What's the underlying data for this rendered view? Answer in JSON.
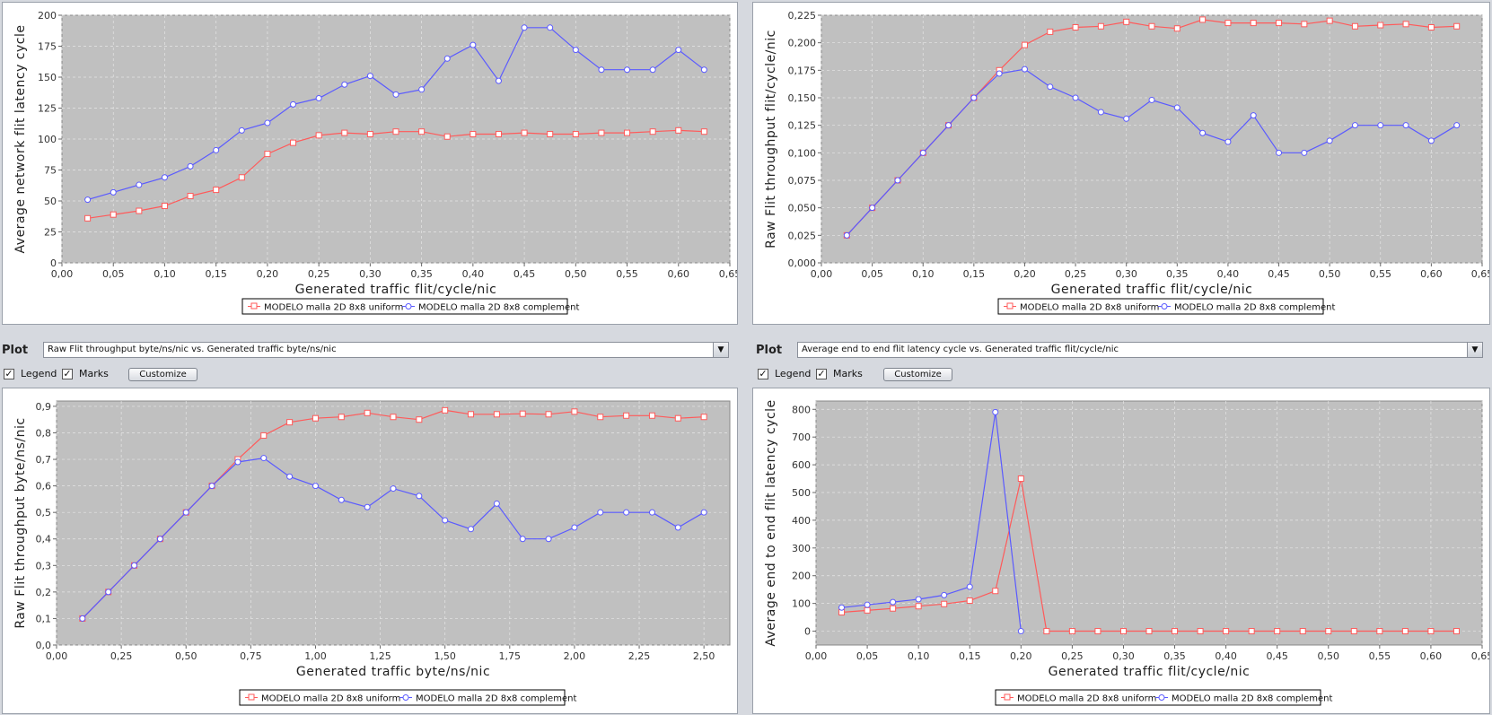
{
  "colors": {
    "series_uniform": "#ff5a5a",
    "series_complement": "#5a5aff",
    "plot_bg": "#c0c0c0",
    "grid": "#e6e6e6"
  },
  "controls": {
    "plot_label": "Plot",
    "legend_label": "Legend",
    "marks_label": "Marks",
    "customize_label": "Customize",
    "legend_checked": true,
    "marks_checked": true,
    "check_glyph": "✓",
    "dropdown_arrow_icon": "triangle-down-icon",
    "plot3_selected": "Raw Flit throughput byte/ns/nic vs. Generated traffic byte/ns/nic",
    "plot4_selected": "Average end to end flit latency cycle vs. Generated traffic flit/cycle/nic"
  },
  "chart_data": [
    {
      "type": "line",
      "title": "",
      "xlabel": "Generated traffic flit/cycle/nic",
      "ylabel": "Average network flit latency cycle",
      "xlim": [
        0,
        0.65
      ],
      "ylim": [
        0,
        200
      ],
      "xticks": [
        "0,00",
        "0,05",
        "0,10",
        "0,15",
        "0,20",
        "0,25",
        "0,30",
        "0,35",
        "0,40",
        "0,45",
        "0,50",
        "0,55",
        "0,60",
        "0,65"
      ],
      "yticks": [
        "0",
        "25",
        "50",
        "75",
        "100",
        "125",
        "150",
        "175",
        "200"
      ],
      "grid": true,
      "legend": "bottom-center",
      "series": [
        {
          "name": "MODELO  malla 2D 8x8 uniform",
          "marker": "square",
          "x": [
            0.025,
            0.05,
            0.075,
            0.1,
            0.125,
            0.15,
            0.175,
            0.2,
            0.225,
            0.25,
            0.275,
            0.3,
            0.325,
            0.35,
            0.375,
            0.4,
            0.425,
            0.45,
            0.475,
            0.5,
            0.525,
            0.55,
            0.575,
            0.6,
            0.625
          ],
          "y": [
            36,
            39,
            42,
            46,
            54,
            59,
            69,
            88,
            97,
            103,
            105,
            104,
            106,
            106,
            102,
            104,
            104,
            105,
            104,
            104,
            105,
            105,
            106,
            107,
            106
          ]
        },
        {
          "name": "MODELO  malla 2D 8x8 complement",
          "marker": "circle",
          "x": [
            0.025,
            0.05,
            0.075,
            0.1,
            0.125,
            0.15,
            0.175,
            0.2,
            0.225,
            0.25,
            0.275,
            0.3,
            0.325,
            0.35,
            0.375,
            0.4,
            0.425,
            0.45,
            0.475,
            0.5,
            0.525,
            0.55,
            0.575,
            0.6,
            0.625
          ],
          "y": [
            51,
            57,
            63,
            69,
            78,
            91,
            107,
            113,
            128,
            133,
            144,
            151,
            136,
            140,
            165,
            176,
            147,
            190,
            190,
            172,
            156,
            156,
            156,
            172,
            156
          ]
        }
      ]
    },
    {
      "type": "line",
      "title": "",
      "xlabel": "Generated traffic flit/cycle/nic",
      "ylabel": "Raw Flit throughput flit/cycle/nic",
      "xlim": [
        0,
        0.65
      ],
      "ylim": [
        0,
        0.225
      ],
      "xticks": [
        "0,00",
        "0,05",
        "0,10",
        "0,15",
        "0,20",
        "0,25",
        "0,30",
        "0,35",
        "0,40",
        "0,45",
        "0,50",
        "0,55",
        "0,60",
        "0,65"
      ],
      "yticks": [
        "0,000",
        "0,025",
        "0,050",
        "0,075",
        "0,100",
        "0,125",
        "0,150",
        "0,175",
        "0,200",
        "0,225"
      ],
      "grid": true,
      "legend": "bottom-center",
      "series": [
        {
          "name": "MODELO  malla 2D 8x8 uniform",
          "marker": "square",
          "x": [
            0.025,
            0.05,
            0.075,
            0.1,
            0.125,
            0.15,
            0.175,
            0.2,
            0.225,
            0.25,
            0.275,
            0.3,
            0.325,
            0.35,
            0.375,
            0.4,
            0.425,
            0.45,
            0.475,
            0.5,
            0.525,
            0.55,
            0.575,
            0.6,
            0.625
          ],
          "y": [
            0.025,
            0.05,
            0.075,
            0.1,
            0.125,
            0.15,
            0.175,
            0.198,
            0.21,
            0.214,
            0.215,
            0.219,
            0.215,
            0.213,
            0.221,
            0.218,
            0.218,
            0.218,
            0.217,
            0.22,
            0.215,
            0.216,
            0.217,
            0.214,
            0.215
          ]
        },
        {
          "name": "MODELO  malla 2D 8x8 complement",
          "marker": "circle",
          "x": [
            0.025,
            0.05,
            0.075,
            0.1,
            0.125,
            0.15,
            0.175,
            0.2,
            0.225,
            0.25,
            0.275,
            0.3,
            0.325,
            0.35,
            0.375,
            0.4,
            0.425,
            0.45,
            0.475,
            0.5,
            0.525,
            0.55,
            0.575,
            0.6,
            0.625
          ],
          "y": [
            0.025,
            0.05,
            0.075,
            0.1,
            0.125,
            0.15,
            0.172,
            0.176,
            0.16,
            0.15,
            0.137,
            0.131,
            0.148,
            0.141,
            0.118,
            0.11,
            0.134,
            0.1,
            0.1,
            0.111,
            0.125,
            0.125,
            0.125,
            0.111,
            0.125
          ]
        }
      ]
    },
    {
      "type": "line",
      "title": "",
      "xlabel": "Generated traffic byte/ns/nic",
      "ylabel": "Raw Flit throughput byte/ns/nic",
      "xlim": [
        0,
        2.6
      ],
      "ylim": [
        0,
        0.92
      ],
      "xticks": [
        "0,00",
        "0,25",
        "0,50",
        "0,75",
        "1,00",
        "1,25",
        "1,50",
        "1,75",
        "2,00",
        "2,25",
        "2,50"
      ],
      "yticks": [
        "0,0",
        "0,1",
        "0,2",
        "0,3",
        "0,4",
        "0,5",
        "0,6",
        "0,7",
        "0,8",
        "0,9"
      ],
      "grid": true,
      "legend": "bottom-center",
      "series": [
        {
          "name": "MODELO  malla 2D 8x8 uniform",
          "marker": "square",
          "x": [
            0.1,
            0.2,
            0.3,
            0.4,
            0.5,
            0.6,
            0.7,
            0.8,
            0.9,
            1.0,
            1.1,
            1.2,
            1.3,
            1.4,
            1.5,
            1.6,
            1.7,
            1.8,
            1.9,
            2.0,
            2.1,
            2.2,
            2.3,
            2.4,
            2.5
          ],
          "y": [
            0.1,
            0.2,
            0.3,
            0.4,
            0.5,
            0.6,
            0.7,
            0.79,
            0.84,
            0.855,
            0.86,
            0.875,
            0.86,
            0.85,
            0.885,
            0.87,
            0.87,
            0.872,
            0.87,
            0.88,
            0.86,
            0.865,
            0.865,
            0.855,
            0.86
          ]
        },
        {
          "name": "MODELO  malla 2D 8x8 complement",
          "marker": "circle",
          "x": [
            0.1,
            0.2,
            0.3,
            0.4,
            0.5,
            0.6,
            0.7,
            0.8,
            0.9,
            1.0,
            1.1,
            1.2,
            1.3,
            1.4,
            1.5,
            1.6,
            1.7,
            1.8,
            1.9,
            2.0,
            2.1,
            2.2,
            2.3,
            2.4,
            2.5
          ],
          "y": [
            0.1,
            0.2,
            0.3,
            0.4,
            0.5,
            0.6,
            0.69,
            0.705,
            0.635,
            0.6,
            0.547,
            0.52,
            0.59,
            0.562,
            0.47,
            0.437,
            0.533,
            0.4,
            0.4,
            0.443,
            0.5,
            0.5,
            0.5,
            0.443,
            0.5
          ]
        }
      ]
    },
    {
      "type": "line",
      "title": "",
      "xlabel": "Generated traffic flit/cycle/nic",
      "ylabel": "Average end to end flit latency cycle",
      "xlim": [
        0,
        0.65
      ],
      "ylim": [
        -50,
        830
      ],
      "xticks": [
        "0,00",
        "0,05",
        "0,10",
        "0,15",
        "0,20",
        "0,25",
        "0,30",
        "0,35",
        "0,40",
        "0,45",
        "0,50",
        "0,55",
        "0,60",
        "0,65"
      ],
      "yticks": [
        "0",
        "100",
        "200",
        "300",
        "400",
        "500",
        "600",
        "700",
        "800"
      ],
      "grid": true,
      "legend": "bottom-center",
      "series": [
        {
          "name": "MODELO  malla 2D 8x8 uniform",
          "marker": "square",
          "x": [
            0.025,
            0.05,
            0.075,
            0.1,
            0.125,
            0.15,
            0.175,
            0.2,
            0.225,
            0.25,
            0.275,
            0.3,
            0.325,
            0.35,
            0.375,
            0.4,
            0.425,
            0.45,
            0.475,
            0.5,
            0.525,
            0.55,
            0.575,
            0.6,
            0.625
          ],
          "y": [
            68,
            75,
            82,
            90,
            98,
            110,
            145,
            550,
            0,
            0,
            0,
            0,
            0,
            0,
            0,
            0,
            0,
            0,
            0,
            0,
            0,
            0,
            0,
            0,
            0
          ]
        },
        {
          "name": "MODELO  malla 2D 8x8 complement",
          "marker": "circle",
          "x": [
            0.025,
            0.05,
            0.075,
            0.1,
            0.125,
            0.15,
            0.175,
            0.2
          ],
          "y": [
            85,
            95,
            105,
            115,
            130,
            160,
            790,
            0
          ]
        }
      ]
    }
  ]
}
